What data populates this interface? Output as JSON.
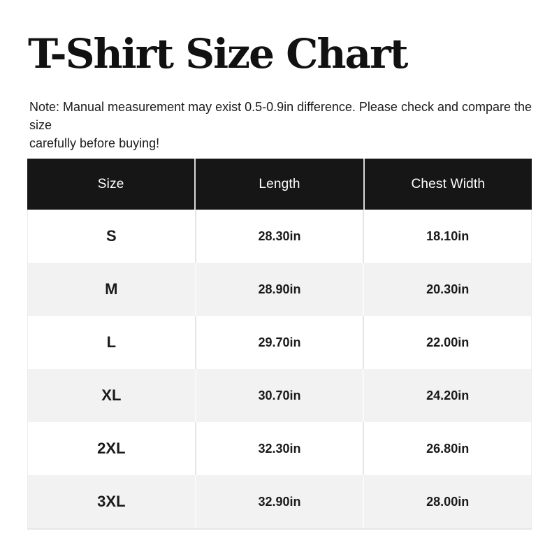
{
  "page": {
    "title": "T-Shirt Size Chart",
    "note_line1": "Note: Manual measurement may exist 0.5-0.9in difference. Please check and compare the size",
    "note_line2": "carefully before buying!"
  },
  "table": {
    "headers": [
      "Size",
      "Length",
      "Chest Width"
    ],
    "rows": [
      [
        "S",
        "28.30in",
        "18.10in"
      ],
      [
        "M",
        "28.90in",
        "20.30in"
      ],
      [
        "L",
        "29.70in",
        "22.00in"
      ],
      [
        "XL",
        "30.70in",
        "24.20in"
      ],
      [
        "2XL",
        "32.30in",
        "26.80in"
      ],
      [
        "3XL",
        "32.90in",
        "28.00in"
      ]
    ]
  },
  "colors": {
    "header_bg": "#161616",
    "header_text": "#ffffff",
    "row_bg": "#ffffff",
    "row_alt_bg": "#f2f2f2",
    "body_text": "#1a1a1a"
  },
  "chart_data": {
    "type": "table",
    "title": "T-Shirt Size Chart",
    "columns": [
      "Size",
      "Length",
      "Chest Width"
    ],
    "units": "in",
    "rows": [
      {
        "size": "S",
        "length_in": 28.3,
        "chest_width_in": 18.1
      },
      {
        "size": "M",
        "length_in": 28.9,
        "chest_width_in": 20.3
      },
      {
        "size": "L",
        "length_in": 29.7,
        "chest_width_in": 22.0
      },
      {
        "size": "XL",
        "length_in": 30.7,
        "chest_width_in": 24.2
      },
      {
        "size": "2XL",
        "length_in": 32.3,
        "chest_width_in": 26.8
      },
      {
        "size": "3XL",
        "length_in": 32.9,
        "chest_width_in": 28.0
      }
    ]
  }
}
